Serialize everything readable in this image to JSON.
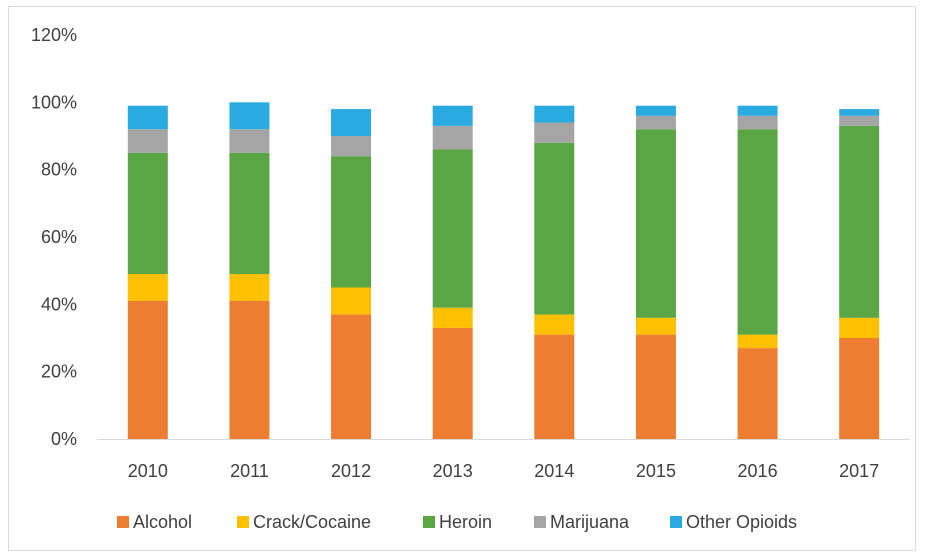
{
  "chart_data": {
    "type": "bar",
    "stacked": true,
    "categories": [
      "2010",
      "2011",
      "2012",
      "2013",
      "2014",
      "2015",
      "2016",
      "2017"
    ],
    "series": [
      {
        "name": "Alcohol",
        "color": "#ED7D31",
        "values": [
          41,
          41,
          37,
          33,
          31,
          31,
          27,
          30
        ]
      },
      {
        "name": "Crack/Cocaine",
        "color": "#FFC000",
        "values": [
          8,
          8,
          8,
          6,
          6,
          5,
          4,
          6
        ]
      },
      {
        "name": "Heroin",
        "color": "#5AA544",
        "values": [
          36,
          36,
          39,
          47,
          51,
          56,
          61,
          57
        ]
      },
      {
        "name": "Marijuana",
        "color": "#A5A5A5",
        "values": [
          7,
          7,
          6,
          7,
          6,
          4,
          4,
          3
        ]
      },
      {
        "name": "Other Opioids",
        "color": "#29ABE2",
        "values": [
          7,
          8,
          8,
          6,
          5,
          3,
          3,
          2
        ]
      }
    ],
    "ylim": [
      0,
      120
    ],
    "yticks": [
      "0%",
      "20%",
      "40%",
      "60%",
      "80%",
      "100%",
      "120%"
    ],
    "ytick_values": [
      0,
      20,
      40,
      60,
      80,
      100,
      120
    ],
    "grid": false,
    "legend_position": "bottom"
  }
}
